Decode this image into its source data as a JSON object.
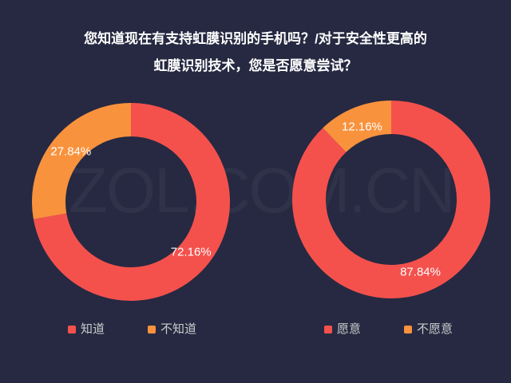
{
  "background": "#262941",
  "palette": {
    "primary_red": "#f4514d",
    "secondary_orange": "#f9923d"
  },
  "title": {
    "lines": [
      "您知道现在有支持虹膜识别的手机吗？/对于安全性更高的",
      "虹膜识别技术，您是否愿意尝试？"
    ]
  },
  "watermark": "ZOL.COM.CN",
  "chart_data": [
    {
      "type": "pie",
      "subtype": "donut",
      "title": "您知道现在有支持虹膜识别的手机吗？",
      "categories": [
        "知道",
        "不知道"
      ],
      "values": [
        72.16,
        27.84
      ],
      "value_labels": [
        "72.16%",
        "27.84%"
      ],
      "colors": [
        "#f4514d",
        "#f9923d"
      ],
      "start_angle_deg": 0,
      "direction": "clockwise",
      "legend_position": "bottom"
    },
    {
      "type": "pie",
      "subtype": "donut",
      "title": "对于安全性更高的虹膜识别技术，您是否愿意尝试？",
      "categories": [
        "愿意",
        "不愿意"
      ],
      "values": [
        87.84,
        12.16
      ],
      "value_labels": [
        "87.84%",
        "12.16%"
      ],
      "colors": [
        "#f4514d",
        "#f9923d"
      ],
      "start_angle_deg": 0,
      "direction": "clockwise",
      "legend_position": "bottom"
    }
  ]
}
